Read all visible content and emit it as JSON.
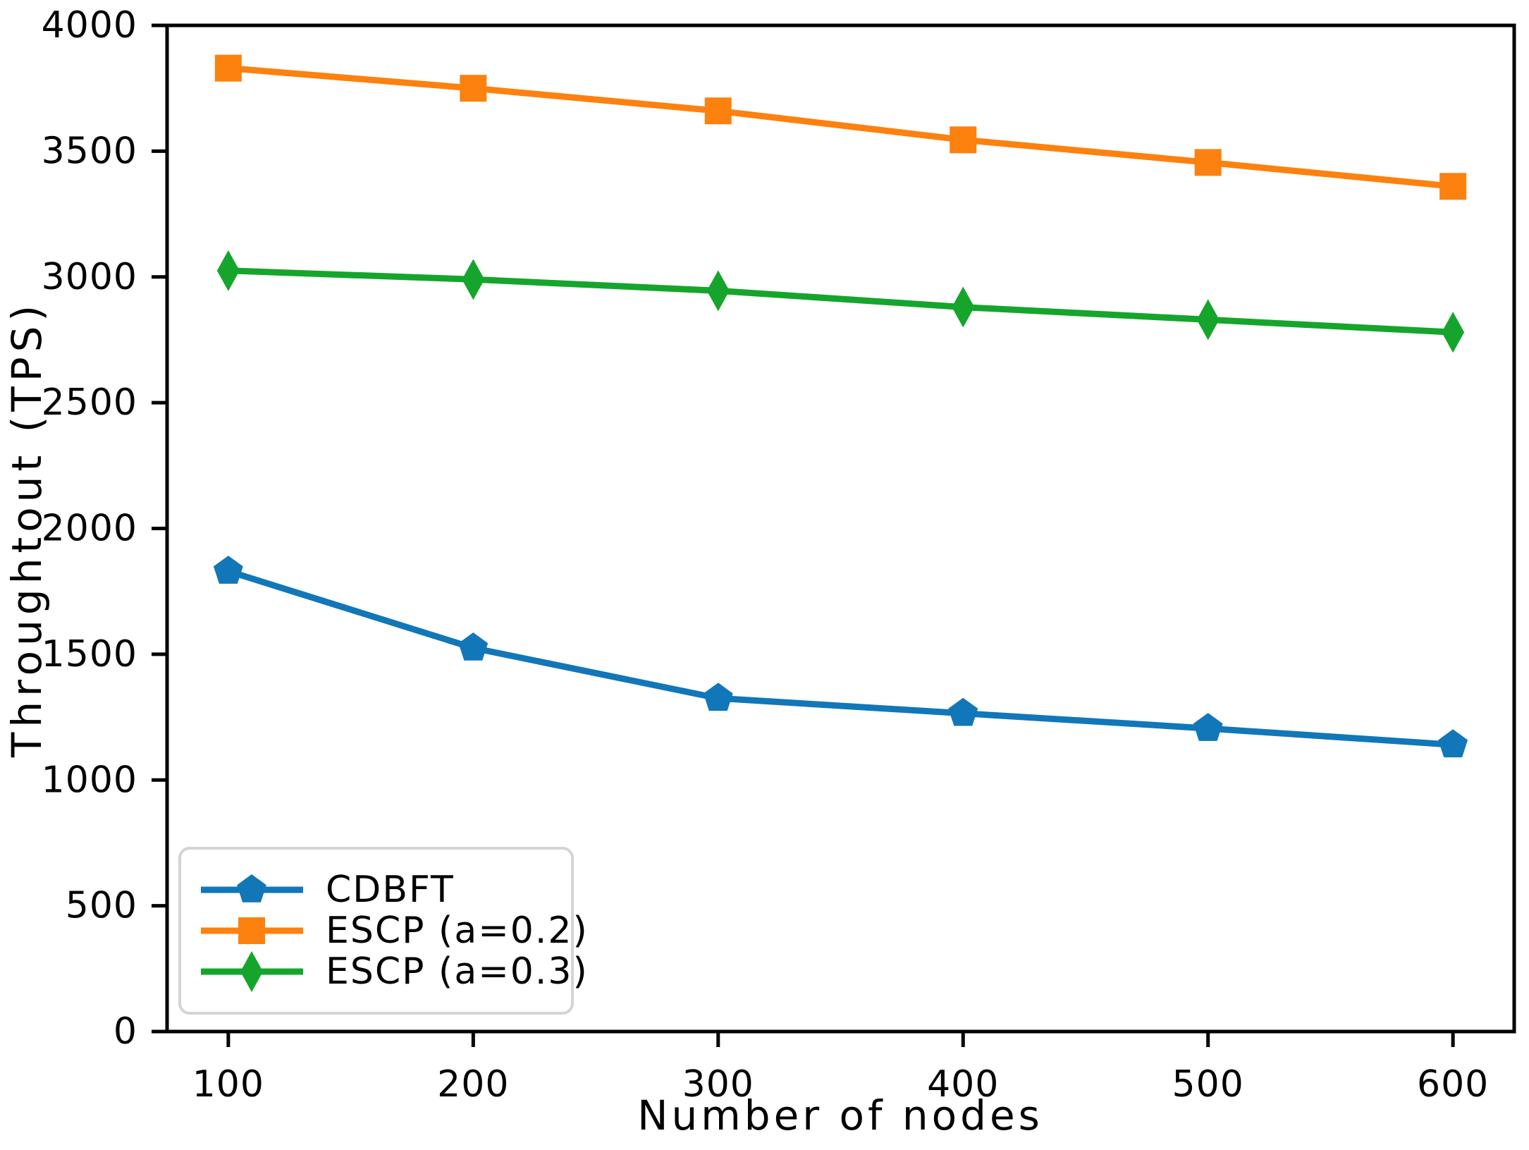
{
  "figure": {
    "background": "#ffffff",
    "axis_color": "#000000",
    "legend_border_color": "#d4d4d4"
  },
  "chart_data": {
    "type": "line",
    "title": "",
    "xlabel": "Number of nodes",
    "ylabel": "Throughtout (TPS)",
    "x": [
      100,
      200,
      300,
      400,
      500,
      600
    ],
    "xticks": [
      "100",
      "200",
      "300",
      "400",
      "500",
      "600"
    ],
    "yticks": [
      "0",
      "500",
      "1000",
      "1500",
      "2000",
      "2500",
      "3000",
      "3500",
      "4000"
    ],
    "ytick_values": [
      0,
      500,
      1000,
      1500,
      2000,
      2500,
      3000,
      3500,
      4000
    ],
    "xlim": [
      75,
      625
    ],
    "ylim": [
      0,
      4000
    ],
    "grid": false,
    "legend_position": "lower-left",
    "series": [
      {
        "name": "CDBFT",
        "color": "#1177b8",
        "marker": "pentagon",
        "values": [
          1830,
          1525,
          1325,
          1265,
          1205,
          1140
        ]
      },
      {
        "name": "ESCP（a=0.2）",
        "color": "#fd810e",
        "marker": "square",
        "values": [
          3830,
          3750,
          3660,
          3545,
          3455,
          3360
        ]
      },
      {
        "name": "ESCP（a=0.3）",
        "color": "#16a52c",
        "marker": "diamond",
        "values": [
          3025,
          2990,
          2945,
          2880,
          2830,
          2780
        ]
      }
    ]
  }
}
